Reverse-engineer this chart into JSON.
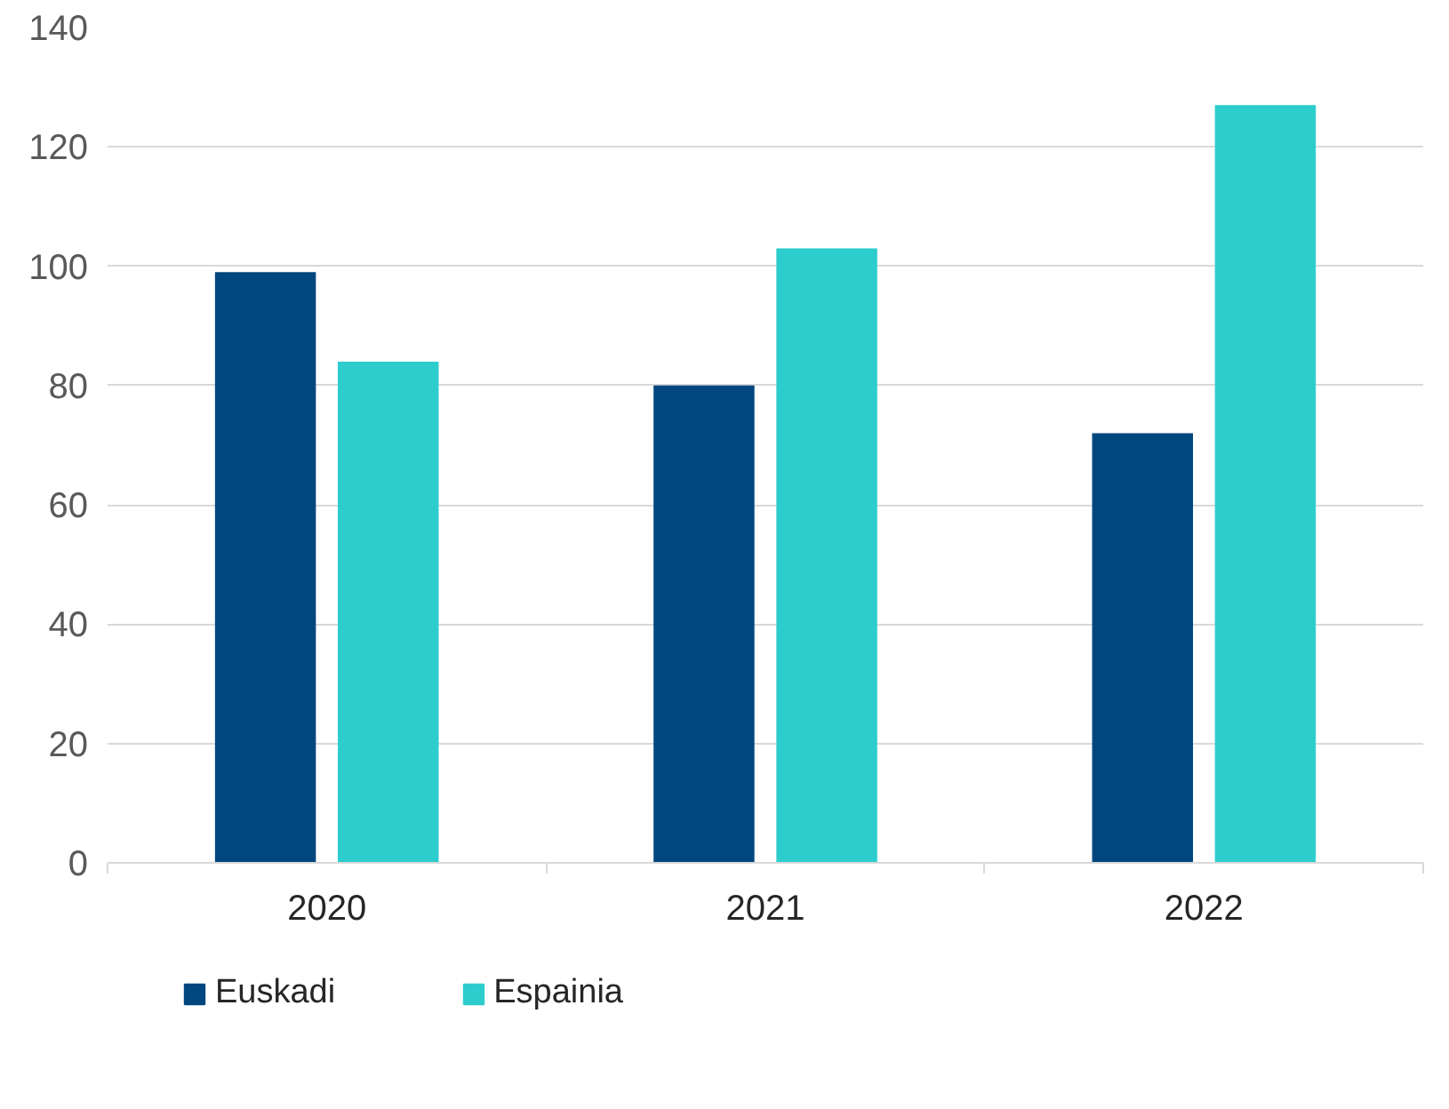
{
  "chart_data": {
    "type": "bar",
    "categories": [
      "2020",
      "2021",
      "2022"
    ],
    "series": [
      {
        "name": "Euskadi",
        "color": "#00467f",
        "values": [
          99,
          80,
          72
        ]
      },
      {
        "name": "Espainia",
        "color": "#2dcdcd",
        "values": [
          84,
          103,
          127
        ]
      }
    ],
    "ylim": [
      0,
      140
    ],
    "yticks": [
      0,
      20,
      40,
      60,
      80,
      100,
      120,
      140
    ],
    "grid": "y",
    "legend": "bottom left"
  }
}
